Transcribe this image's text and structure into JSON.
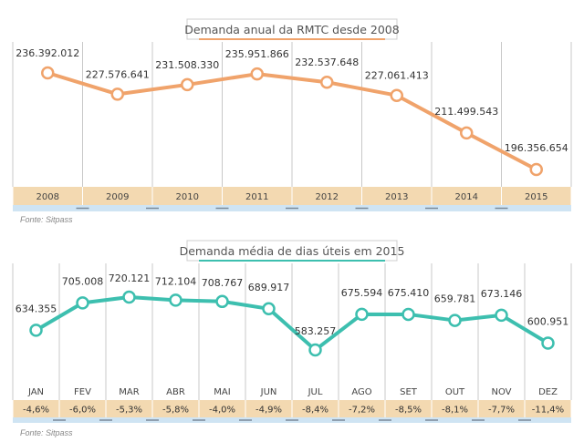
{
  "colors": {
    "line1": "#f0a36b",
    "line2": "#3dbfaf",
    "band": "#f3d9b1",
    "tab": "#cfe4f3",
    "grid": "#c8c8c8",
    "title_underline1": "#f0a36b",
    "title_underline2": "#3dbfaf"
  },
  "chart_data": [
    {
      "type": "line",
      "title": "Demanda anual da RMTC desde 2008",
      "categories": [
        "2008",
        "2009",
        "2010",
        "2011",
        "2012",
        "2013",
        "2014",
        "2015"
      ],
      "values": [
        236392012,
        227576641,
        231508330,
        235951866,
        232537648,
        227061413,
        211499543,
        196356654
      ],
      "value_labels": [
        "236.392.012",
        "227.576.641",
        "231.508.330",
        "235.951.866",
        "232.537.648",
        "227.061.413",
        "211.499.543",
        "196.356.654"
      ],
      "source": "Fonte: Sitpass",
      "grid": "vertical separators",
      "marker": "hollow circle"
    },
    {
      "type": "line",
      "title": "Demanda média de dias úteis em 2015",
      "categories": [
        "JAN",
        "FEV",
        "MAR",
        "ABR",
        "MAI",
        "JUN",
        "JUL",
        "AGO",
        "SET",
        "OUT",
        "NOV",
        "DEZ"
      ],
      "values": [
        634355,
        705008,
        720121,
        712104,
        708767,
        689917,
        583257,
        675594,
        675410,
        659781,
        673146,
        600951
      ],
      "value_labels": [
        "634.355",
        "705.008",
        "720.121",
        "712.104",
        "708.767",
        "689.917",
        "583.257",
        "675.594",
        "675.410",
        "659.781",
        "673.146",
        "600.951"
      ],
      "percent_changes": [
        "-4,6%",
        "-6,0%",
        "-5,3%",
        "-5,8%",
        "-4,0%",
        "-4,9%",
        "-8,4%",
        "-7,2%",
        "-8,5%",
        "-8,1%",
        "-7,7%",
        "-11,4%"
      ],
      "source": "Fonte: Sitpass",
      "grid": "vertical separators",
      "marker": "hollow circle"
    }
  ]
}
